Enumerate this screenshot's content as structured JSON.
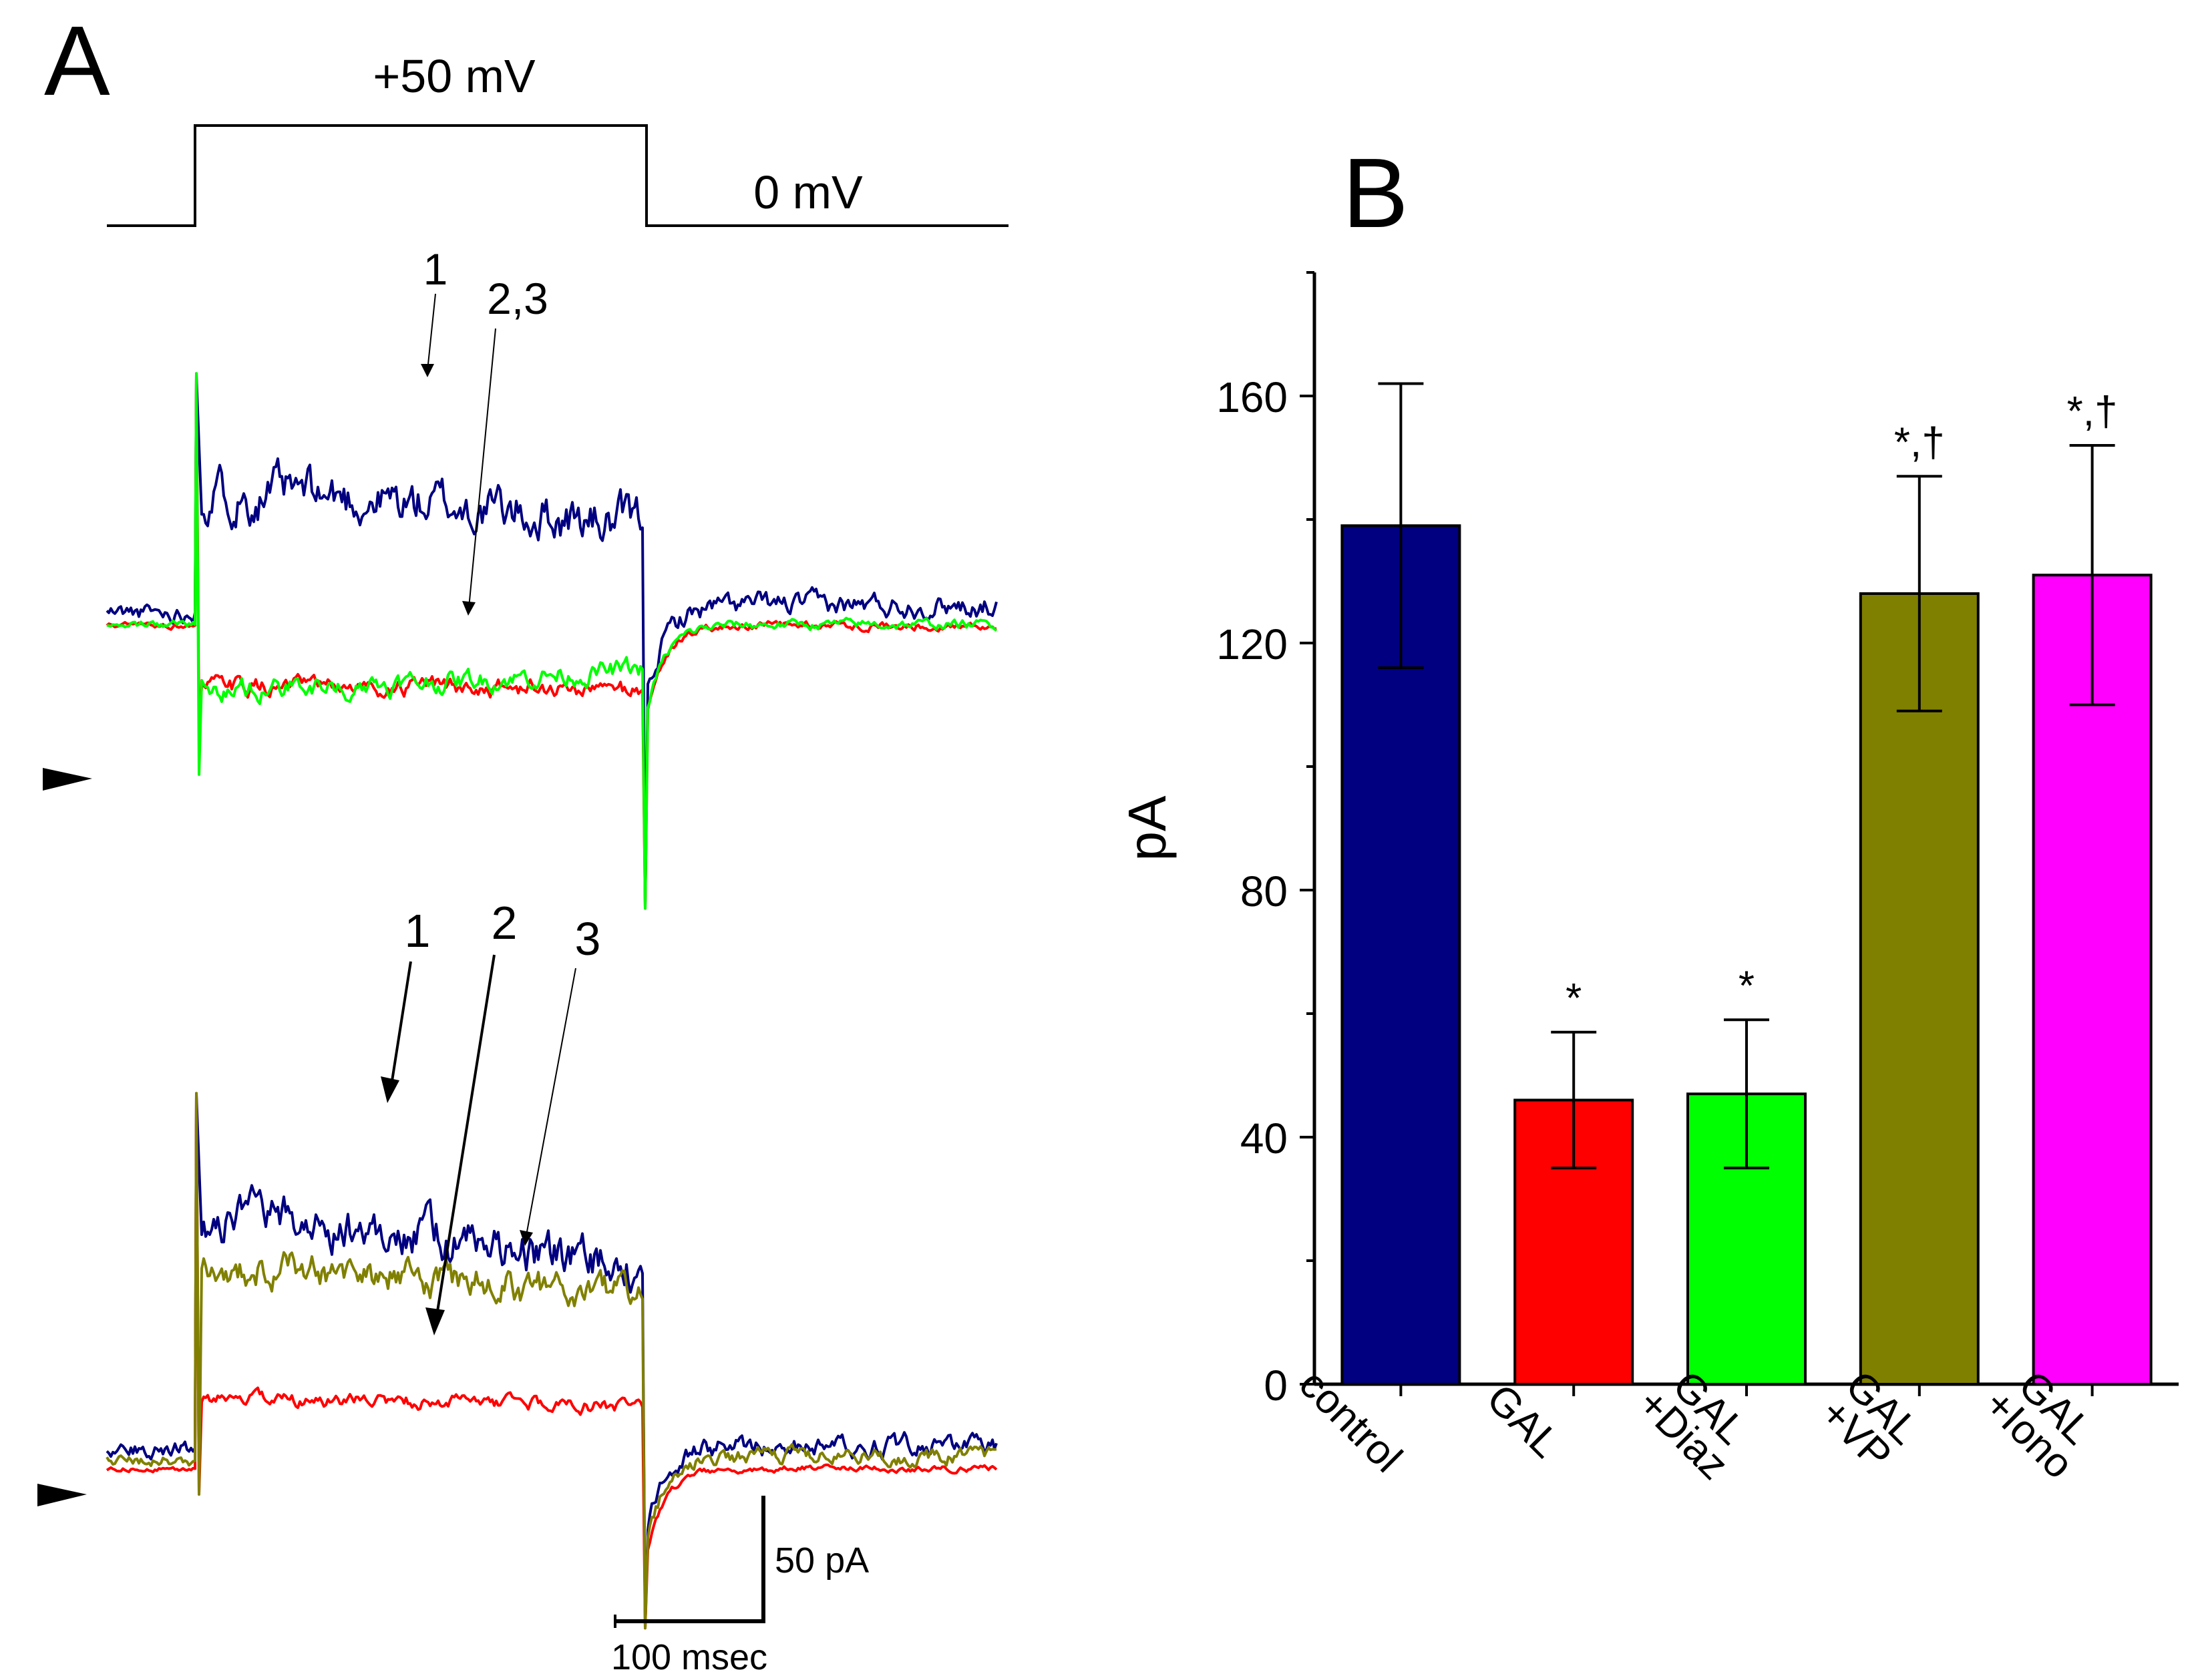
{
  "panel_a": {
    "label": "A",
    "voltage_step": {
      "step_label": "+50 mV",
      "hold_label": "0 mV"
    },
    "top_traces": {
      "annotation_1": "1",
      "annotation_23": "2,3",
      "series": [
        {
          "name": "1",
          "color": "#000080",
          "pre": 0.315,
          "peak": 0.64,
          "mid": 0.55,
          "end": 0.48,
          "post": 0.33,
          "noise": 0.035
        },
        {
          "name": "2",
          "color": "#ff0000",
          "pre": 0.29,
          "peak": 0.1,
          "mid": 0.17,
          "end": 0.165,
          "post": 0.29,
          "noise": 0.013
        },
        {
          "name": "3",
          "color": "#00ff00",
          "pre": 0.292,
          "peak": 0.0,
          "mid": 0.165,
          "end": 0.205,
          "post": 0.292,
          "noise": 0.015
        }
      ]
    },
    "bottom_traces": {
      "annotation_1": "1",
      "annotation_2": "2",
      "annotation_3": "3",
      "series": [
        {
          "name": "1",
          "color": "#000080",
          "pre": 0.09,
          "peak": 0.64,
          "mid": 0.54,
          "end": 0.43,
          "post": 0.095,
          "noise": 0.032
        },
        {
          "name": "2",
          "color": "#ff0000",
          "pre": 0.05,
          "peak": 0.0,
          "mid": 0.185,
          "end": 0.17,
          "post": 0.05,
          "noise": 0.01
        },
        {
          "name": "3",
          "color": "#808000",
          "pre": 0.065,
          "peak": 0.0,
          "mid": 0.44,
          "end": 0.38,
          "post": 0.075,
          "noise": 0.025
        }
      ]
    },
    "scale_bar": {
      "current_label": "50 pA",
      "time_label": "100 msec"
    }
  },
  "panel_b": {
    "label": "B"
  },
  "chart_data": {
    "type": "bar",
    "title": "",
    "xlabel": "",
    "ylabel": "pA",
    "ylim": [
      0,
      180
    ],
    "yticks": [
      0,
      40,
      80,
      120,
      160
    ],
    "categories": [
      {
        "line1": "control",
        "line2": ""
      },
      {
        "line1": "GAL",
        "line2": ""
      },
      {
        "line1": "GAL",
        "line2": "+Diaz"
      },
      {
        "line1": "GAL",
        "line2": "+VP"
      },
      {
        "line1": "GAL",
        "line2": "+Iono"
      }
    ],
    "values": [
      139,
      46,
      47,
      128,
      131
    ],
    "errors": [
      23,
      11,
      12,
      19,
      21
    ],
    "colors": [
      "#000080",
      "#ff0000",
      "#00ff00",
      "#808000",
      "#ff00ff"
    ],
    "significance": [
      "",
      "*",
      "*",
      "*,†",
      "*,†"
    ]
  }
}
